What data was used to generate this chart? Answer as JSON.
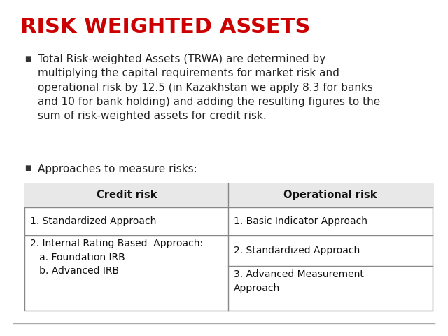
{
  "title": "RISK WEIGHTED ASSETS",
  "title_color": "#cc0000",
  "title_fontsize": 22,
  "title_fontweight": "bold",
  "bg_color": "#ffffff",
  "bullet1_lines": [
    "Total Risk-weighted Assets (TRWA) are determined by",
    "multiplying the capital requirements for market risk and",
    "operational risk by 12.5 (in Kazakhstan we apply 8.3 for banks",
    "and 10 for bank holding) and adding the resulting figures to the",
    "sum of risk-weighted assets for credit risk."
  ],
  "bullet2": "Approaches to measure risks:",
  "bullet_fontsize": 11,
  "table_header_left": "Credit risk",
  "table_header_right": "Operational risk",
  "table_header_fontsize": 10.5,
  "table_row1_left": "1. Standardized Approach",
  "table_row1_right": "1. Basic Indicator Approach",
  "table_row2_left": "2. Internal Rating Based  Approach:\n   a. Foundation IRB\n   b. Advanced IRB",
  "table_row2_right_a": "2. Standardized Approach",
  "table_row2_right_b": "3. Advanced Measurement\nApproach",
  "table_fontsize": 10,
  "border_color": "#888888",
  "header_bg_color": "#e8e8e8",
  "footer_line_color": "#aaaaaa",
  "slide_border_color": "#cccccc"
}
